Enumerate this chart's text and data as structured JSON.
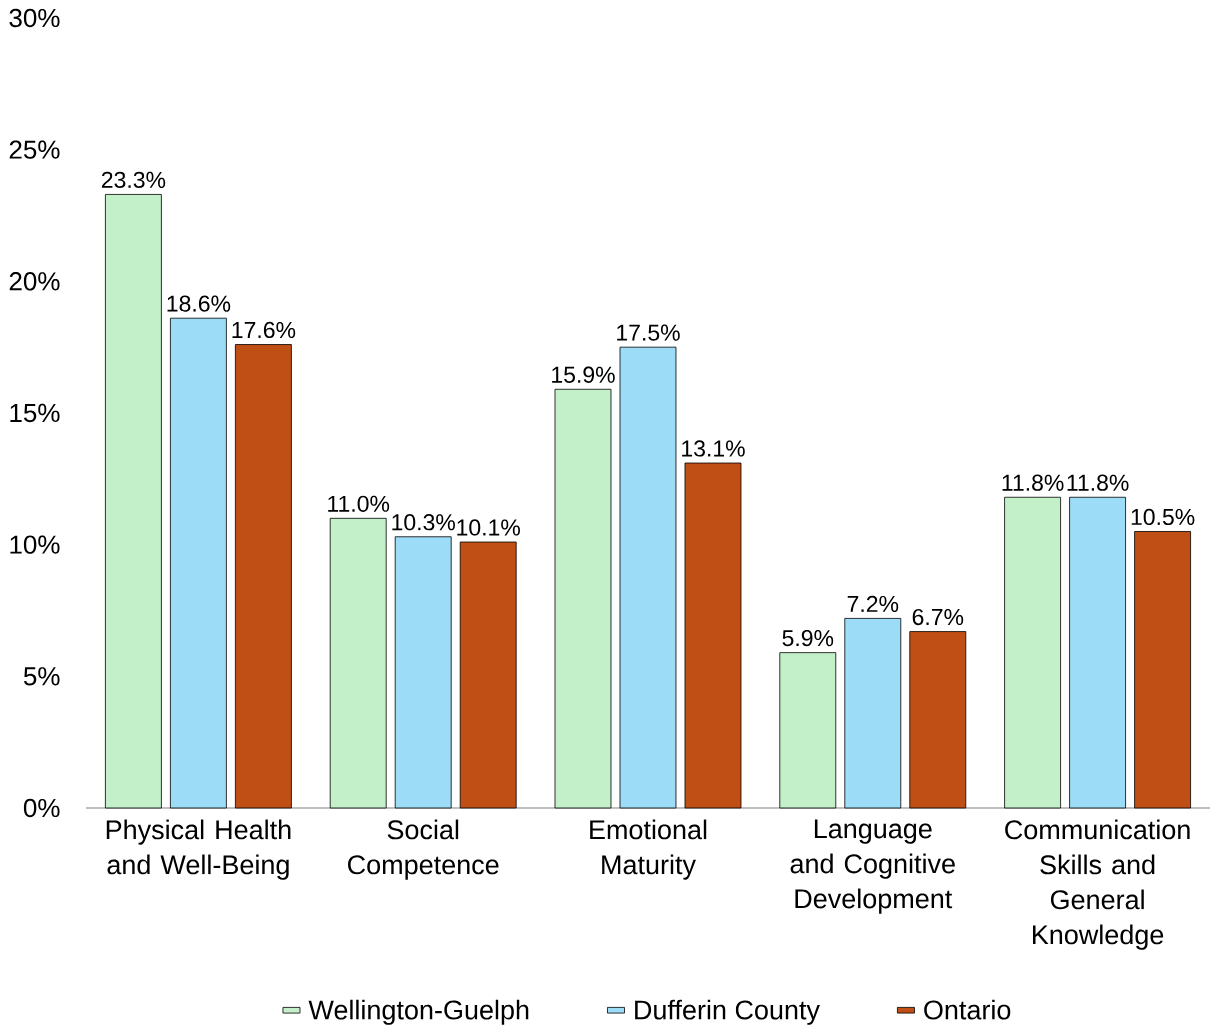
{
  "chart_data": {
    "type": "bar",
    "categories": [
      "Physical Health and Well-Being",
      "Social Competence",
      "Emotional Maturity",
      "Language and Cognitive Development",
      "Communication Skills and General Knowledge"
    ],
    "series": [
      {
        "name": "Wellington-Guelph",
        "color": "#c3f0c9",
        "values": [
          23.3,
          11.0,
          15.9,
          5.9,
          11.8
        ],
        "value_labels": [
          "23.3%",
          "11.0%",
          "15.9%",
          "5.9%",
          "11.8%"
        ]
      },
      {
        "name": "Dufferin County",
        "color": "#9ddcf7",
        "values": [
          18.6,
          10.3,
          17.5,
          7.2,
          11.8
        ],
        "value_labels": [
          "18.6%",
          "10.3%",
          "17.5%",
          "7.2%",
          "11.8%"
        ]
      },
      {
        "name": "Ontario",
        "color": "#c04f15",
        "values": [
          17.6,
          10.1,
          13.1,
          6.7,
          10.5
        ],
        "value_labels": [
          "17.6%",
          "10.1%",
          "13.1%",
          "6.7%",
          "10.5%"
        ]
      }
    ],
    "ylim": [
      0,
      30
    ],
    "yticks": [
      {
        "value": 0,
        "label": "0%"
      },
      {
        "value": 5,
        "label": "5%"
      },
      {
        "value": 10,
        "label": "10%"
      },
      {
        "value": 15,
        "label": "15%"
      },
      {
        "value": 20,
        "label": "20%"
      },
      {
        "value": 25,
        "label": "25%"
      },
      {
        "value": 30,
        "label": "30%"
      }
    ],
    "legend": "bottom"
  }
}
